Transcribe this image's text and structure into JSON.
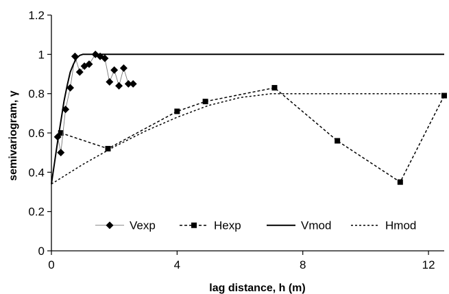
{
  "chart_data": {
    "type": "line",
    "xlabel": "lag distance, h (m)",
    "ylabel": "semivariogram, γ",
    "xlim": [
      0,
      12.5
    ],
    "ylim": [
      0,
      1.2
    ],
    "xticks": [
      0,
      4,
      8,
      12
    ],
    "yticks": [
      0,
      0.2,
      0.4,
      0.6,
      0.8,
      1,
      1.2
    ],
    "ytick_labels": [
      "0",
      "0.2",
      "0.4",
      "0.6",
      "0.8",
      "1",
      "1.2"
    ],
    "grid": false,
    "legend_position": "bottom",
    "series": [
      {
        "name": "Vexp",
        "style": "solid-thin-with-diamond-markers",
        "color": "#000000",
        "x": [
          0.2,
          0.3,
          0.45,
          0.6,
          0.75,
          0.9,
          1.05,
          1.2,
          1.4,
          1.55,
          1.7,
          1.85,
          2.0,
          2.15,
          2.3,
          2.45,
          2.6
        ],
        "y": [
          0.58,
          0.5,
          0.72,
          0.83,
          0.99,
          0.91,
          0.94,
          0.95,
          1.0,
          0.99,
          0.98,
          0.86,
          0.92,
          0.84,
          0.93,
          0.85,
          0.85
        ]
      },
      {
        "name": "Hexp",
        "style": "dashed-with-square-markers",
        "color": "#000000",
        "x": [
          0.3,
          1.8,
          4.0,
          4.9,
          7.1,
          9.1,
          11.1,
          12.5
        ],
        "y": [
          0.6,
          0.52,
          0.71,
          0.76,
          0.83,
          0.56,
          0.35,
          0.79
        ]
      },
      {
        "name": "Vmod",
        "style": "solid-thick",
        "color": "#000000",
        "x": [
          0,
          0.1,
          0.2,
          0.3,
          0.4,
          0.5,
          0.6,
          0.7,
          0.8,
          0.9,
          1.0,
          1.1,
          1.2,
          12.5
        ],
        "y": [
          0.34,
          0.45,
          0.56,
          0.66,
          0.76,
          0.84,
          0.91,
          0.95,
          0.98,
          0.995,
          1.0,
          1.0,
          1.0,
          1.0
        ]
      },
      {
        "name": "Hmod",
        "style": "dotted",
        "color": "#000000",
        "x": [
          0,
          1,
          2,
          3,
          4,
          5,
          6,
          7,
          7.4,
          12.5
        ],
        "y": [
          0.34,
          0.44,
          0.53,
          0.61,
          0.68,
          0.74,
          0.78,
          0.8,
          0.8,
          0.8
        ]
      }
    ]
  }
}
